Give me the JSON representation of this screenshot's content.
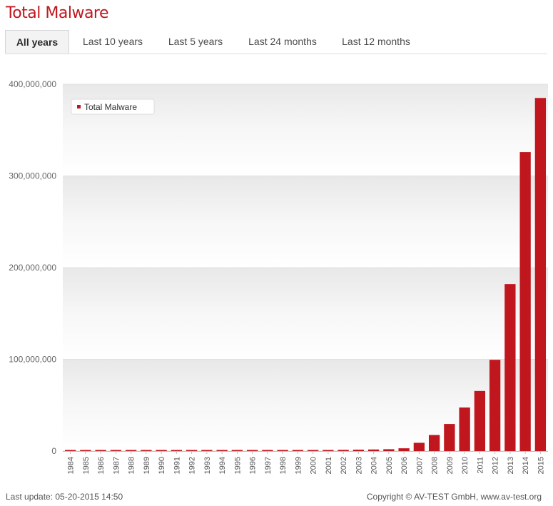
{
  "header": {
    "title": "Total Malware"
  },
  "tabs": [
    {
      "label": "All years",
      "active": true
    },
    {
      "label": "Last 10 years",
      "active": false
    },
    {
      "label": "Last 5 years",
      "active": false
    },
    {
      "label": "Last 24 months",
      "active": false
    },
    {
      "label": "Last 12 months",
      "active": false
    }
  ],
  "footer": {
    "last_update": "Last update: 05-20-2015 14:50",
    "copyright": "Copyright © AV-TEST GmbH, www.av-test.org"
  },
  "colors": {
    "accent": "#c0171e",
    "bar": "#c0171e"
  },
  "chart_data": {
    "type": "bar",
    "title": "",
    "xlabel": "",
    "ylabel": "",
    "legend": {
      "entries": [
        "Total Malware"
      ],
      "placement": "top-left"
    },
    "grid": true,
    "ylim": [
      0,
      400000000
    ],
    "yticks": [
      0,
      100000000,
      200000000,
      300000000,
      400000000
    ],
    "ytick_labels": [
      "0",
      "100,000,000",
      "200,000,000",
      "300,000,000",
      "400,000,000"
    ],
    "categories": [
      "1984",
      "1985",
      "1986",
      "1987",
      "1988",
      "1989",
      "1990",
      "1991",
      "1992",
      "1993",
      "1994",
      "1995",
      "1996",
      "1997",
      "1998",
      "1999",
      "2000",
      "2001",
      "2002",
      "2003",
      "2004",
      "2005",
      "2006",
      "2007",
      "2008",
      "2009",
      "2010",
      "2011",
      "2012",
      "2013",
      "2014",
      "2015"
    ],
    "series": [
      {
        "name": "Total Malware",
        "values": [
          500000,
          500000,
          500000,
          500000,
          500000,
          500000,
          500000,
          500000,
          500000,
          500000,
          500000,
          500000,
          500000,
          600000,
          700000,
          800000,
          900000,
          1100000,
          1300000,
          1500000,
          1700000,
          2000000,
          3000000,
          9000000,
          17500000,
          29500000,
          47500000,
          65500000,
          99500000,
          182000000,
          326000000,
          385000000
        ]
      }
    ]
  }
}
